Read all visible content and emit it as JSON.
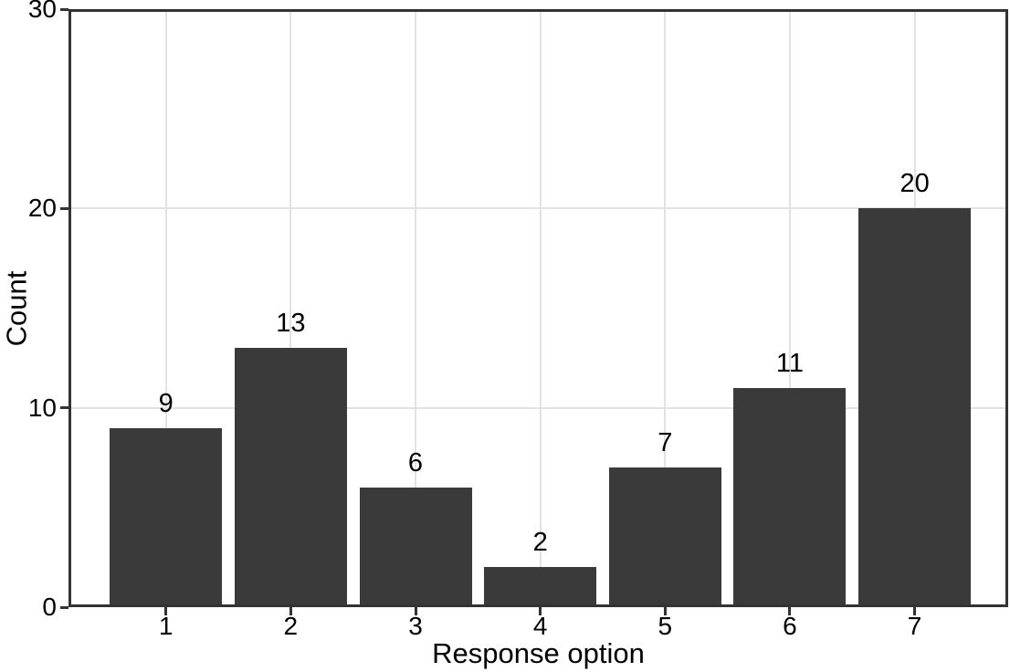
{
  "chart_data": {
    "type": "bar",
    "categories": [
      "1",
      "2",
      "3",
      "4",
      "5",
      "6",
      "7"
    ],
    "values": [
      9,
      13,
      6,
      2,
      7,
      11,
      20
    ],
    "xlabel": "Response option",
    "ylabel": "Count",
    "ylim": [
      0,
      30
    ],
    "yticks": [
      0,
      10,
      20,
      30
    ],
    "grid": true,
    "legend": "none",
    "bar_value_labels_shown": true,
    "style": {
      "bar_fill": "#3a3a3a",
      "panel_border": "#333333",
      "gridline": "#e2e2e2",
      "tick_color": "#333333",
      "text_color": "#000000",
      "background": "#ffffff"
    }
  }
}
